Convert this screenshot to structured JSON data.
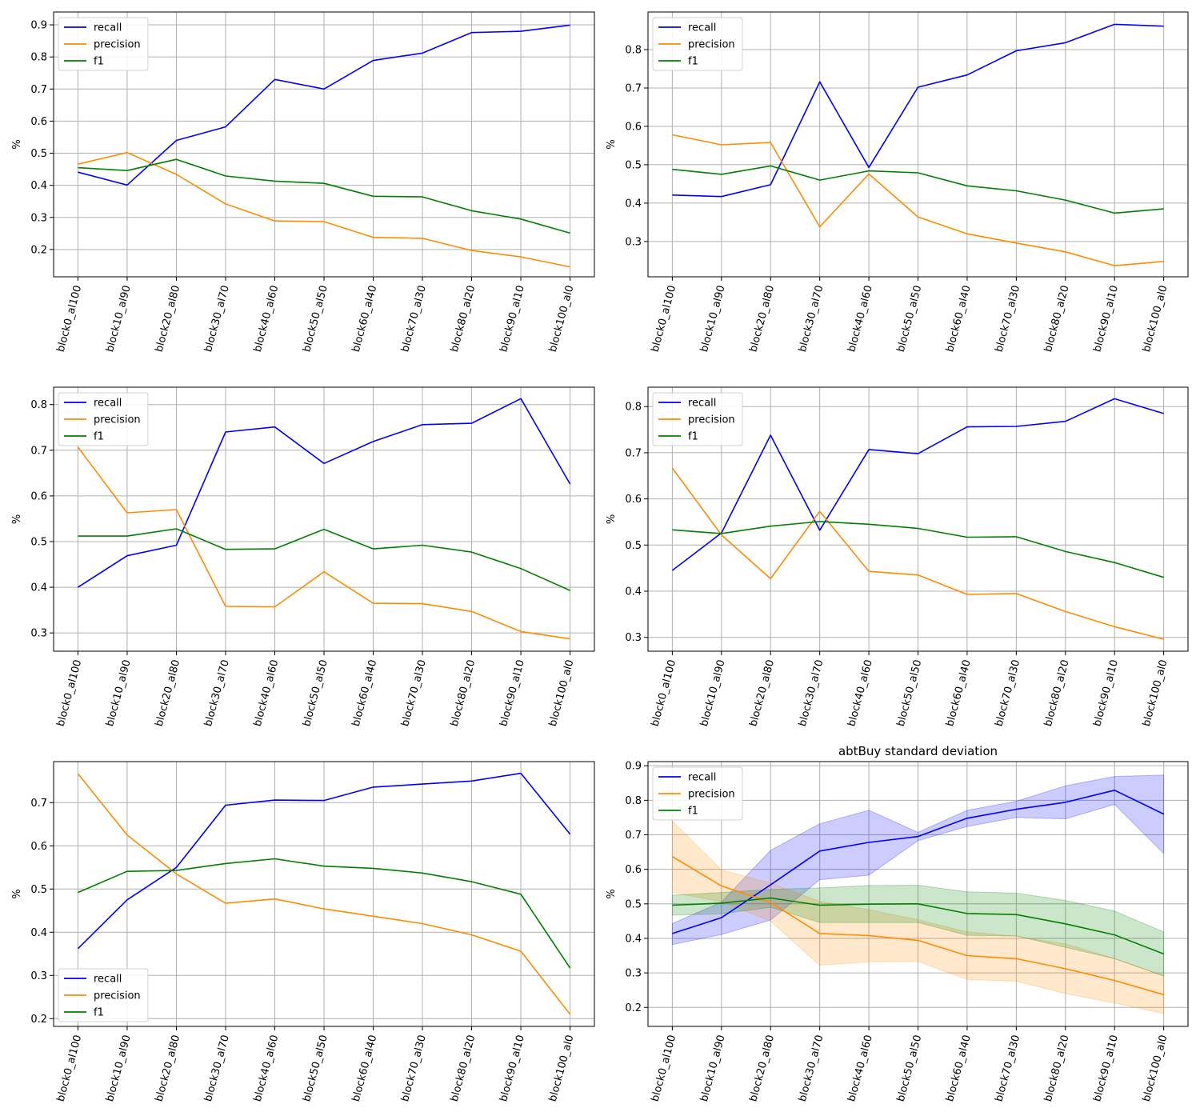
{
  "chart_data": [
    {
      "type": "line",
      "title": "",
      "xlabel": "",
      "ylabel": "%",
      "categories": [
        "block0_al100",
        "block10_al90",
        "block20_al80",
        "block30_al70",
        "block40_al60",
        "block50_al50",
        "block60_al40",
        "block70_al30",
        "block80_al20",
        "block90_al10",
        "block100_al0"
      ],
      "ylim": [
        0.115,
        0.94
      ],
      "yticks": [
        0.2,
        0.3,
        0.4,
        0.5,
        0.6,
        0.7,
        0.8,
        0.9
      ],
      "grid": true,
      "legend": "upper-left",
      "series": [
        {
          "name": "recall",
          "color": "#0000ff",
          "values": [
            0.441,
            0.401,
            0.54,
            0.582,
            0.73,
            0.7,
            0.789,
            0.812,
            0.876,
            0.88,
            0.899
          ]
        },
        {
          "name": "precision",
          "color": "#ff8c00",
          "values": [
            0.466,
            0.502,
            0.434,
            0.342,
            0.289,
            0.287,
            0.238,
            0.235,
            0.197,
            0.177,
            0.146
          ]
        },
        {
          "name": "f1",
          "color": "#008000",
          "values": [
            0.455,
            0.446,
            0.481,
            0.429,
            0.413,
            0.406,
            0.366,
            0.364,
            0.321,
            0.295,
            0.251
          ]
        }
      ]
    },
    {
      "type": "line",
      "title": "",
      "xlabel": "",
      "ylabel": "%",
      "categories": [
        "block0_al100",
        "block10_al90",
        "block20_al80",
        "block30_al70",
        "block40_al60",
        "block50_al50",
        "block60_al40",
        "block70_al30",
        "block80_al20",
        "block90_al10",
        "block100_al0"
      ],
      "ylim": [
        0.208,
        0.898
      ],
      "yticks": [
        0.3,
        0.4,
        0.5,
        0.6,
        0.7,
        0.8
      ],
      "grid": true,
      "legend": "upper-left",
      "series": [
        {
          "name": "recall",
          "color": "#0000ff",
          "values": [
            0.421,
            0.417,
            0.448,
            0.716,
            0.493,
            0.702,
            0.734,
            0.797,
            0.818,
            0.866,
            0.861
          ]
        },
        {
          "name": "precision",
          "color": "#ff8c00",
          "values": [
            0.578,
            0.552,
            0.558,
            0.338,
            0.476,
            0.364,
            0.32,
            0.296,
            0.273,
            0.237,
            0.248
          ]
        },
        {
          "name": "f1",
          "color": "#008000",
          "values": [
            0.488,
            0.475,
            0.497,
            0.46,
            0.484,
            0.479,
            0.445,
            0.432,
            0.408,
            0.374,
            0.385
          ]
        }
      ]
    },
    {
      "type": "line",
      "title": "",
      "xlabel": "",
      "ylabel": "%",
      "categories": [
        "block0_al100",
        "block10_al90",
        "block20_al80",
        "block30_al70",
        "block40_al60",
        "block50_al50",
        "block60_al40",
        "block70_al30",
        "block80_al20",
        "block90_al10",
        "block100_al0"
      ],
      "ylim": [
        0.26,
        0.838
      ],
      "yticks": [
        0.3,
        0.4,
        0.5,
        0.6,
        0.7,
        0.8
      ],
      "grid": true,
      "legend": "upper-left",
      "series": [
        {
          "name": "recall",
          "color": "#0000ff",
          "values": [
            0.4,
            0.469,
            0.492,
            0.74,
            0.751,
            0.671,
            0.719,
            0.756,
            0.759,
            0.813,
            0.626
          ]
        },
        {
          "name": "precision",
          "color": "#ff8c00",
          "values": [
            0.707,
            0.563,
            0.57,
            0.358,
            0.357,
            0.434,
            0.365,
            0.364,
            0.347,
            0.303,
            0.287
          ]
        },
        {
          "name": "f1",
          "color": "#008000",
          "values": [
            0.512,
            0.512,
            0.528,
            0.483,
            0.484,
            0.527,
            0.484,
            0.492,
            0.477,
            0.441,
            0.393
          ]
        }
      ]
    },
    {
      "type": "line",
      "title": "",
      "xlabel": "",
      "ylabel": "%",
      "categories": [
        "block0_al100",
        "block10_al90",
        "block20_al80",
        "block30_al70",
        "block40_al60",
        "block50_al50",
        "block60_al40",
        "block70_al30",
        "block80_al20",
        "block90_al10",
        "block100_al0"
      ],
      "ylim": [
        0.27,
        0.842
      ],
      "yticks": [
        0.3,
        0.4,
        0.5,
        0.6,
        0.7,
        0.8
      ],
      "grid": true,
      "legend": "upper-left",
      "series": [
        {
          "name": "recall",
          "color": "#0000ff",
          "values": [
            0.445,
            0.526,
            0.738,
            0.532,
            0.707,
            0.698,
            0.756,
            0.757,
            0.768,
            0.817,
            0.785
          ]
        },
        {
          "name": "precision",
          "color": "#ff8c00",
          "values": [
            0.667,
            0.522,
            0.427,
            0.573,
            0.443,
            0.435,
            0.393,
            0.395,
            0.356,
            0.323,
            0.296
          ]
        },
        {
          "name": "f1",
          "color": "#008000",
          "values": [
            0.533,
            0.525,
            0.541,
            0.551,
            0.545,
            0.536,
            0.517,
            0.518,
            0.486,
            0.462,
            0.43
          ]
        }
      ]
    },
    {
      "type": "line",
      "title": "",
      "xlabel": "",
      "ylabel": "%",
      "categories": [
        "block0_al100",
        "block10_al90",
        "block20_al80",
        "block30_al70",
        "block40_al60",
        "block50_al50",
        "block60_al40",
        "block70_al30",
        "block80_al20",
        "block90_al10",
        "block100_al0"
      ],
      "ylim": [
        0.182,
        0.795
      ],
      "yticks": [
        0.2,
        0.3,
        0.4,
        0.5,
        0.6,
        0.7
      ],
      "grid": true,
      "legend": "lower-left",
      "series": [
        {
          "name": "recall",
          "color": "#0000ff",
          "values": [
            0.362,
            0.475,
            0.55,
            0.694,
            0.706,
            0.705,
            0.736,
            0.743,
            0.75,
            0.768,
            0.627
          ]
        },
        {
          "name": "precision",
          "color": "#ff8c00",
          "values": [
            0.767,
            0.625,
            0.535,
            0.467,
            0.477,
            0.454,
            0.437,
            0.42,
            0.394,
            0.356,
            0.21
          ]
        },
        {
          "name": "f1",
          "color": "#008000",
          "values": [
            0.492,
            0.541,
            0.543,
            0.559,
            0.57,
            0.553,
            0.548,
            0.537,
            0.517,
            0.488,
            0.317
          ]
        }
      ]
    },
    {
      "type": "area",
      "title": "abtBuy standard deviation",
      "xlabel": "",
      "ylabel": "%",
      "categories": [
        "block0_al100",
        "block10_al90",
        "block20_al80",
        "block30_al70",
        "block40_al60",
        "block50_al50",
        "block60_al40",
        "block70_al30",
        "block80_al20",
        "block90_al10",
        "block100_al0"
      ],
      "ylim": [
        0.145,
        0.912
      ],
      "yticks": [
        0.2,
        0.3,
        0.4,
        0.5,
        0.6,
        0.7,
        0.8,
        0.9
      ],
      "grid": true,
      "legend": "upper-left",
      "series": [
        {
          "name": "recall",
          "color": "#0000ff",
          "values": [
            0.414,
            0.46,
            0.555,
            0.653,
            0.678,
            0.695,
            0.748,
            0.774,
            0.794,
            0.829,
            0.76
          ],
          "upper": [
            0.443,
            0.505,
            0.655,
            0.732,
            0.771,
            0.707,
            0.771,
            0.797,
            0.842,
            0.869,
            0.873
          ],
          "lower": [
            0.382,
            0.411,
            0.453,
            0.57,
            0.583,
            0.683,
            0.724,
            0.75,
            0.746,
            0.788,
            0.646
          ]
        },
        {
          "name": "precision",
          "color": "#ff8c00",
          "values": [
            0.637,
            0.552,
            0.504,
            0.414,
            0.408,
            0.394,
            0.35,
            0.341,
            0.312,
            0.278,
            0.237
          ],
          "upper": [
            0.74,
            0.598,
            0.56,
            0.507,
            0.483,
            0.454,
            0.419,
            0.406,
            0.384,
            0.342,
            0.292
          ],
          "lower": [
            0.533,
            0.506,
            0.45,
            0.322,
            0.332,
            0.333,
            0.281,
            0.276,
            0.24,
            0.213,
            0.182
          ]
        },
        {
          "name": "f1",
          "color": "#008000",
          "values": [
            0.496,
            0.502,
            0.517,
            0.496,
            0.499,
            0.5,
            0.472,
            0.469,
            0.442,
            0.41,
            0.355
          ],
          "upper": [
            0.525,
            0.533,
            0.542,
            0.546,
            0.553,
            0.554,
            0.535,
            0.531,
            0.51,
            0.479,
            0.419
          ],
          "lower": [
            0.467,
            0.471,
            0.49,
            0.446,
            0.446,
            0.446,
            0.409,
            0.407,
            0.374,
            0.341,
            0.291
          ]
        }
      ]
    }
  ]
}
